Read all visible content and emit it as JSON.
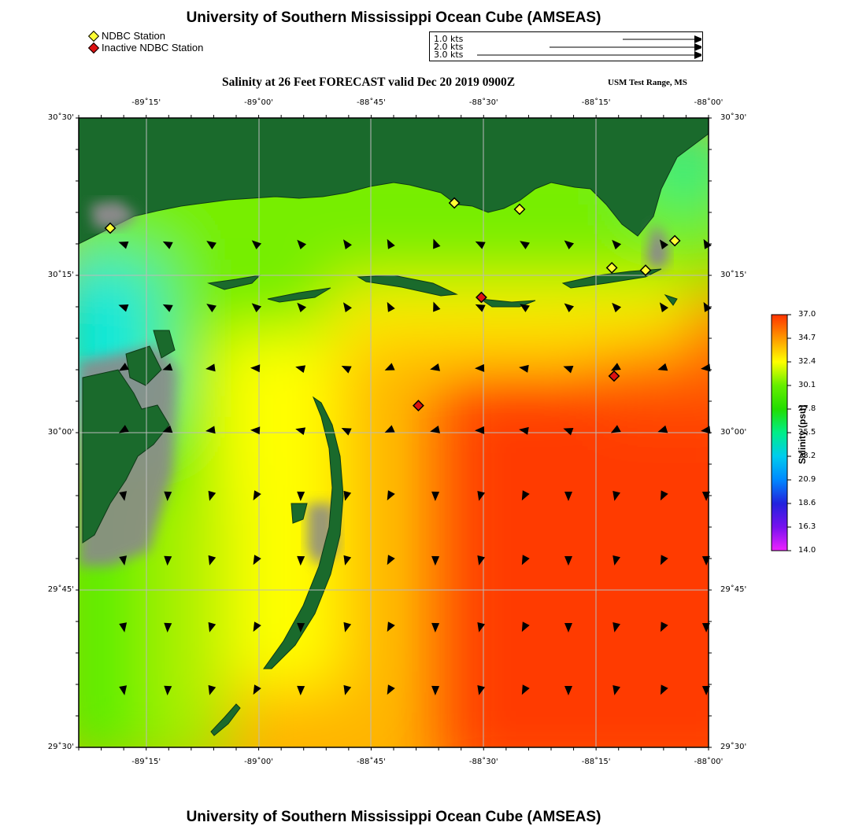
{
  "header": {
    "title": "University of Southern Mississippi Ocean Cube (AMSEAS)",
    "subtitle": "Salinity at 26 Feet FORECAST valid Dec 20 2019 0900Z",
    "range": "USM Test Range, MS"
  },
  "footer": {
    "title": "University of Southern Mississippi Ocean Cube (AMSEAS)"
  },
  "legend": {
    "ndbc": {
      "label": "NDBC Station",
      "color": "#ffff33"
    },
    "inactive": {
      "label": "Inactive NDBC Station",
      "color": "#dd1111"
    }
  },
  "vector_key": [
    {
      "label": "1.0 kts"
    },
    {
      "label": "2.0 kts"
    },
    {
      "label": "3.0 kts"
    }
  ],
  "map": {
    "lon_ticks": [
      {
        "label": "-89˚15'",
        "lon": -89.25
      },
      {
        "label": "-89˚00'",
        "lon": -89.0
      },
      {
        "label": "-88˚45'",
        "lon": -88.75
      },
      {
        "label": "-88˚30'",
        "lon": -88.5
      },
      {
        "label": "-88˚15'",
        "lon": -88.25
      },
      {
        "label": "-88˚00'",
        "lon": -88.0
      }
    ],
    "lat_ticks": [
      {
        "label": "30˚30'",
        "lat": 30.5
      },
      {
        "label": "30˚15'",
        "lat": 30.25
      },
      {
        "label": "30˚00'",
        "lat": 30.0
      },
      {
        "label": "29˚45'",
        "lat": 29.75
      },
      {
        "label": "29˚30'",
        "lat": 29.5
      }
    ],
    "extent": {
      "lon_min": -89.4,
      "lon_max": -88.0,
      "lat_min": 29.5,
      "lat_max": 30.5
    },
    "land_color": "#1a6a2c",
    "marsh_color": "#8a8a8a",
    "stations": [
      {
        "lon": -89.33,
        "lat": 30.325,
        "active": true
      },
      {
        "lon": -88.565,
        "lat": 30.365,
        "active": true
      },
      {
        "lon": -88.42,
        "lat": 30.355,
        "active": true
      },
      {
        "lon": -88.075,
        "lat": 30.305,
        "active": true
      },
      {
        "lon": -88.14,
        "lat": 30.258,
        "active": true
      },
      {
        "lon": -88.215,
        "lat": 30.262,
        "active": true
      },
      {
        "lon": -88.505,
        "lat": 30.215,
        "active": false
      },
      {
        "lon": -88.21,
        "lat": 30.09,
        "active": false
      },
      {
        "lon": -88.645,
        "lat": 30.043,
        "active": false
      }
    ]
  },
  "colorbar": {
    "title": "Salinity (psu)",
    "ticks": [
      "37.0",
      "34.7",
      "32.4",
      "30.1",
      "27.8",
      "25.5",
      "23.2",
      "20.9",
      "18.6",
      "16.3",
      "14.0"
    ],
    "colors": [
      "#ff3300",
      "#ff9900",
      "#ffff00",
      "#66ee00",
      "#22dd00",
      "#00ee88",
      "#00ccee",
      "#0088ff",
      "#2222dd",
      "#7711ee",
      "#ee22ff"
    ]
  }
}
